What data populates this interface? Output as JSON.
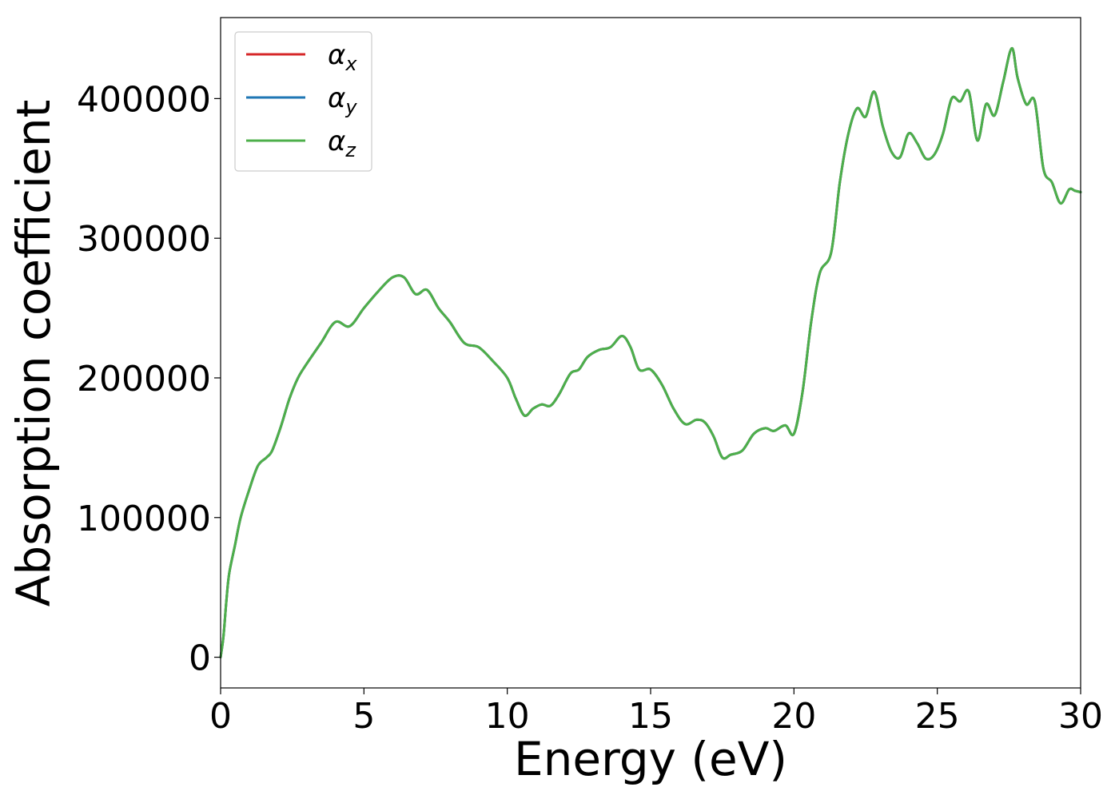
{
  "chart_data": {
    "type": "line",
    "title": "",
    "xlabel": "Energy (eV)",
    "ylabel": "Absorption coefficient",
    "xlim": [
      0,
      30
    ],
    "ylim": [
      -22000,
      458000
    ],
    "xticks": [
      0,
      5,
      10,
      15,
      20,
      25,
      30
    ],
    "yticks": [
      0,
      100000,
      200000,
      300000,
      400000
    ],
    "xtick_labels": [
      "0",
      "5",
      "10",
      "15",
      "20",
      "25",
      "30"
    ],
    "ytick_labels": [
      "0",
      "100000",
      "200000",
      "300000",
      "400000"
    ],
    "grid": false,
    "legend_position": "top-left",
    "x": [
      0,
      0.1,
      0.2,
      0.3,
      0.5,
      0.7,
      1.0,
      1.3,
      1.6,
      1.8,
      2.1,
      2.4,
      2.7,
      3.0,
      3.5,
      4.0,
      4.5,
      5.0,
      5.5,
      6.0,
      6.4,
      6.8,
      7.2,
      7.6,
      8.0,
      8.5,
      9.0,
      9.5,
      10.0,
      10.3,
      10.6,
      10.9,
      11.2,
      11.5,
      11.8,
      12.2,
      12.5,
      12.8,
      13.2,
      13.6,
      14.0,
      14.3,
      14.6,
      15.0,
      15.4,
      15.8,
      16.2,
      16.6,
      16.9,
      17.2,
      17.5,
      17.8,
      18.2,
      18.6,
      19.0,
      19.3,
      19.7,
      20.0,
      20.3,
      20.6,
      20.9,
      21.3,
      21.6,
      21.9,
      22.2,
      22.5,
      22.8,
      23.1,
      23.4,
      23.7,
      24.0,
      24.3,
      24.6,
      24.9,
      25.2,
      25.5,
      25.8,
      26.1,
      26.4,
      26.7,
      27.0,
      27.3,
      27.6,
      27.8,
      28.1,
      28.4,
      28.7,
      29.0,
      29.3,
      29.6,
      29.8,
      30.0
    ],
    "series": [
      {
        "name": "α_x",
        "color": "#d62728",
        "values": [
          0,
          15000,
          40000,
          60000,
          80000,
          100000,
          120000,
          137000,
          143000,
          148000,
          165000,
          185000,
          200000,
          210000,
          225000,
          240000,
          237000,
          250000,
          262000,
          272000,
          272000,
          260000,
          263000,
          250000,
          240000,
          225000,
          222000,
          212000,
          200000,
          185000,
          173000,
          178000,
          181000,
          180000,
          188000,
          203000,
          206000,
          215000,
          220000,
          222000,
          230000,
          222000,
          206000,
          206000,
          195000,
          178000,
          167000,
          170000,
          168000,
          158000,
          143000,
          145000,
          148000,
          160000,
          164000,
          162000,
          166000,
          160000,
          190000,
          240000,
          275000,
          290000,
          340000,
          375000,
          393000,
          387000,
          405000,
          380000,
          362000,
          358000,
          375000,
          368000,
          357000,
          360000,
          375000,
          400000,
          398000,
          405000,
          370000,
          396000,
          388000,
          412000,
          436000,
          415000,
          396000,
          398000,
          350000,
          340000,
          325000,
          335000,
          334000,
          333000
        ]
      },
      {
        "name": "α_y",
        "color": "#1f77b4",
        "values": [
          0,
          15000,
          40000,
          60000,
          80000,
          100000,
          120000,
          137000,
          143000,
          148000,
          165000,
          185000,
          200000,
          210000,
          225000,
          240000,
          237000,
          250000,
          262000,
          272000,
          272000,
          260000,
          263000,
          250000,
          240000,
          225000,
          222000,
          212000,
          200000,
          185000,
          173000,
          178000,
          181000,
          180000,
          188000,
          203000,
          206000,
          215000,
          220000,
          222000,
          230000,
          222000,
          206000,
          206000,
          195000,
          178000,
          167000,
          170000,
          168000,
          158000,
          143000,
          145000,
          148000,
          160000,
          164000,
          162000,
          166000,
          160000,
          190000,
          240000,
          275000,
          290000,
          340000,
          375000,
          393000,
          387000,
          405000,
          380000,
          362000,
          358000,
          375000,
          368000,
          357000,
          360000,
          375000,
          400000,
          398000,
          405000,
          370000,
          396000,
          388000,
          412000,
          436000,
          415000,
          396000,
          398000,
          350000,
          340000,
          325000,
          335000,
          334000,
          333000
        ]
      },
      {
        "name": "α_z",
        "color": "#4daf4a",
        "values": [
          0,
          15000,
          40000,
          60000,
          80000,
          100000,
          120000,
          137000,
          143000,
          148000,
          165000,
          185000,
          200000,
          210000,
          225000,
          240000,
          237000,
          250000,
          262000,
          272000,
          272000,
          260000,
          263000,
          250000,
          240000,
          225000,
          222000,
          212000,
          200000,
          185000,
          173000,
          178000,
          181000,
          180000,
          188000,
          203000,
          206000,
          215000,
          220000,
          222000,
          230000,
          222000,
          206000,
          206000,
          195000,
          178000,
          167000,
          170000,
          168000,
          158000,
          143000,
          145000,
          148000,
          160000,
          164000,
          162000,
          166000,
          160000,
          190000,
          240000,
          275000,
          290000,
          340000,
          375000,
          393000,
          387000,
          405000,
          380000,
          362000,
          358000,
          375000,
          368000,
          357000,
          360000,
          375000,
          400000,
          398000,
          405000,
          370000,
          396000,
          388000,
          412000,
          436000,
          415000,
          396000,
          398000,
          350000,
          340000,
          325000,
          335000,
          334000,
          333000
        ]
      }
    ],
    "legend": [
      {
        "symbol": "α",
        "subscript": "x",
        "color": "#d62728"
      },
      {
        "symbol": "α",
        "subscript": "y",
        "color": "#1f77b4"
      },
      {
        "symbol": "α",
        "subscript": "z",
        "color": "#4daf4a"
      }
    ]
  }
}
